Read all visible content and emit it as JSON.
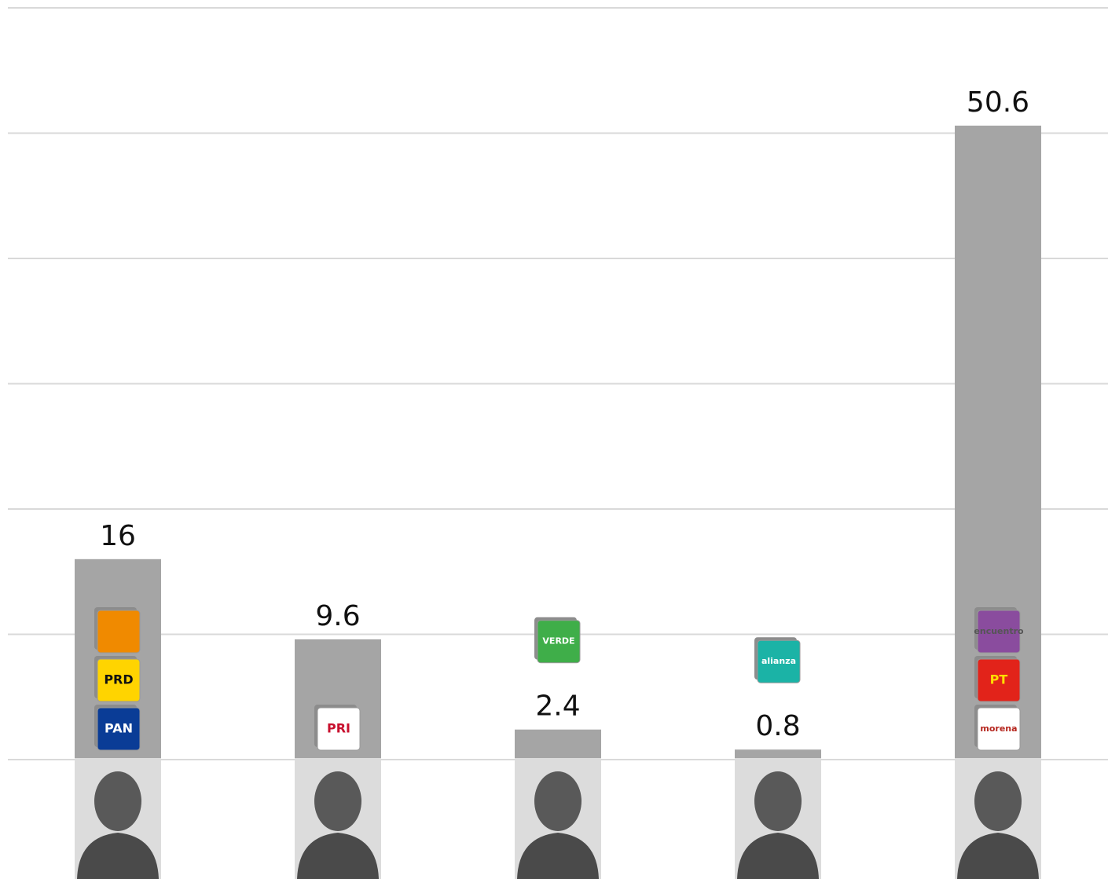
{
  "chart_data": {
    "type": "bar",
    "categories": [
      null,
      null,
      null,
      null,
      null
    ],
    "values": [
      16,
      9.6,
      2.4,
      0.8,
      50.6
    ],
    "color": "#a5a5a5",
    "ylim": [
      0,
      60
    ],
    "yticks": [
      0,
      10,
      20,
      30,
      40,
      50,
      60
    ],
    "grid": true,
    "logos": [
      [
        {
          "text": "PAN",
          "color": "#0a3c96",
          "text_color": "#ffffff"
        },
        {
          "text": "PRD",
          "color": "#ffd400",
          "text_color": "#111111"
        },
        {
          "color": "#f08a00"
        }
      ],
      [
        {
          "text": "PRI",
          "color": "#ffffff",
          "text_color": "#c8102e"
        }
      ],
      [
        {
          "text": "VERDE",
          "color": "#3fae49",
          "text_color": "#ffffff"
        }
      ],
      [
        {
          "text": "alianza",
          "color": "#1bb3a6",
          "text_color": "#ffffff"
        }
      ],
      [
        {
          "text": "morena",
          "color": "#ffffff",
          "text_color": "#b5261e"
        },
        {
          "text": "PT",
          "color": "#e2231a",
          "text_color": "#ffdd00"
        },
        {
          "text": "encuentro",
          "color": "#8a4c9e",
          "text_color": "#555555"
        }
      ]
    ]
  }
}
